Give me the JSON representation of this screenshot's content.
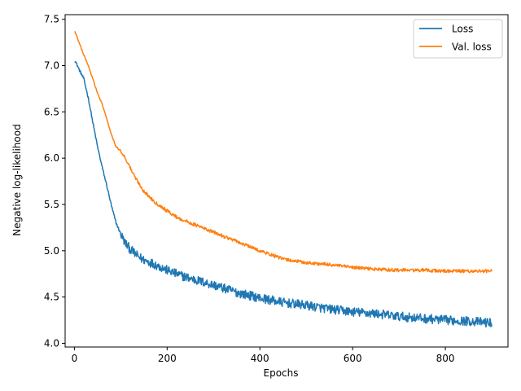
{
  "chart_data": {
    "type": "line",
    "title": "",
    "xlabel": "Epochs",
    "ylabel": "Negative log-likelihood",
    "xlim": [
      -20,
      935
    ],
    "ylim": [
      3.96,
      7.55
    ],
    "xticks": [
      0,
      200,
      400,
      600,
      800
    ],
    "yticks": [
      4.0,
      4.5,
      5.0,
      5.5,
      6.0,
      6.5,
      7.0,
      7.5
    ],
    "grid": false,
    "legend_position": "top-right",
    "x": [
      1,
      10,
      20,
      30,
      40,
      50,
      60,
      70,
      80,
      90,
      100,
      110,
      120,
      130,
      140,
      150,
      175,
      200,
      225,
      250,
      300,
      350,
      400,
      450,
      500,
      550,
      600,
      650,
      700,
      750,
      800,
      850,
      900
    ],
    "series": [
      {
        "name": "Loss",
        "color": "#1f77b4",
        "values": [
          7.06,
          6.96,
          6.86,
          6.65,
          6.38,
          6.12,
          5.9,
          5.7,
          5.48,
          5.3,
          5.18,
          5.08,
          5.02,
          4.97,
          4.93,
          4.9,
          4.85,
          4.79,
          4.74,
          4.7,
          4.63,
          4.55,
          4.49,
          4.44,
          4.41,
          4.37,
          4.34,
          4.32,
          4.29,
          4.27,
          4.25,
          4.24,
          4.22
        ]
      },
      {
        "name": "Val. loss",
        "color": "#ff7f0e",
        "values": [
          7.37,
          7.25,
          7.12,
          7.0,
          6.85,
          6.7,
          6.58,
          6.42,
          6.25,
          6.12,
          6.08,
          6.0,
          5.9,
          5.8,
          5.72,
          5.64,
          5.52,
          5.43,
          5.35,
          5.3,
          5.2,
          5.1,
          5.0,
          4.91,
          4.87,
          4.85,
          4.82,
          4.8,
          4.79,
          4.79,
          4.78,
          4.78,
          4.78
        ]
      }
    ]
  }
}
